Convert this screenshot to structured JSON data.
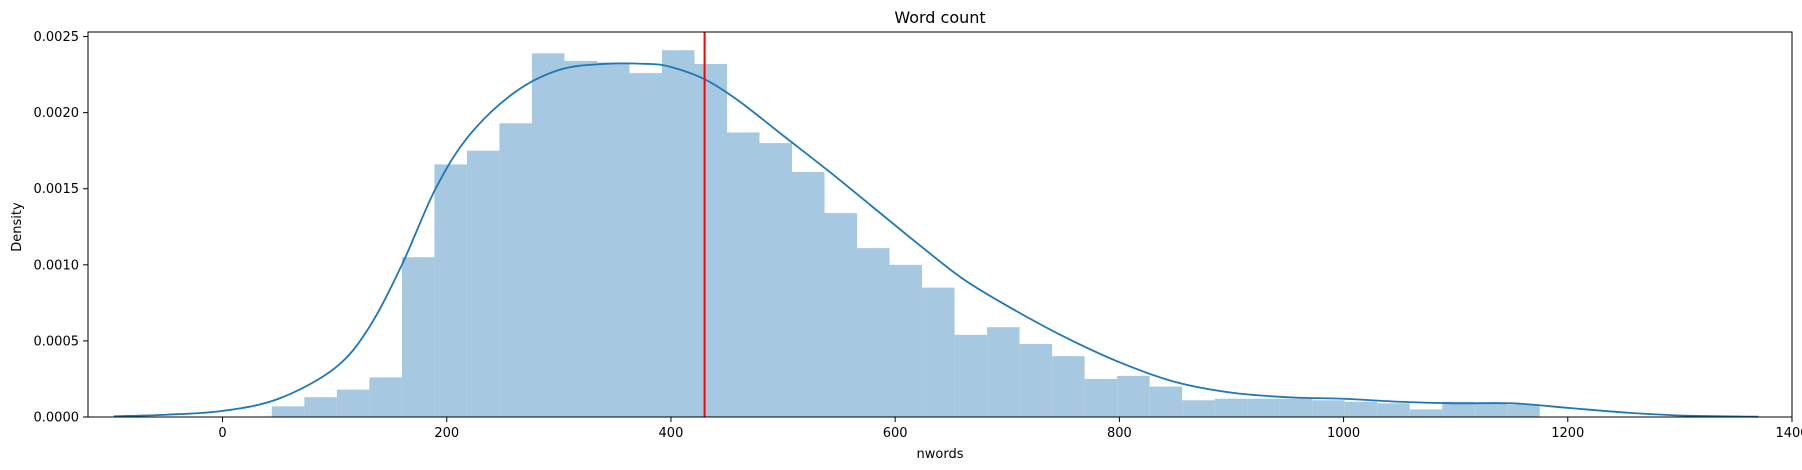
{
  "chart_data": {
    "type": "bar",
    "title": "Word count",
    "xlabel": "nwords",
    "ylabel": "Density",
    "xlim": [
      -120,
      1400
    ],
    "ylim": [
      0,
      0.00253
    ],
    "xticks": [
      0,
      200,
      400,
      600,
      800,
      1000,
      1200,
      1400
    ],
    "xtick_labels": [
      "0",
      "200",
      "400",
      "600",
      "800",
      "1000",
      "1200",
      "1400"
    ],
    "yticks": [
      0,
      0.0005,
      0.001,
      0.0015,
      0.002,
      0.0025
    ],
    "ytick_labels": [
      "0.0000",
      "0.0005",
      "0.0010",
      "0.0015",
      "0.0020",
      "0.0025"
    ],
    "grid": false,
    "histogram": {
      "color": "#a6c8e0",
      "bin_edges": [
        44,
        73,
        102,
        131,
        160,
        189,
        218,
        247,
        276,
        305,
        334,
        363,
        392,
        421,
        450,
        479,
        508,
        537,
        566,
        595,
        624,
        653,
        682,
        711,
        740,
        769,
        798,
        827,
        856,
        885,
        914,
        943,
        972,
        1001,
        1030,
        1059,
        1088,
        1117,
        1146,
        1175
      ],
      "density": [
        7e-05,
        0.00013,
        0.00018,
        0.00026,
        0.00105,
        0.00166,
        0.00175,
        0.00193,
        0.00239,
        0.00234,
        0.00233,
        0.00226,
        0.00241,
        0.00232,
        0.00187,
        0.0018,
        0.00161,
        0.00134,
        0.00111,
        0.001,
        0.00085,
        0.00054,
        0.00059,
        0.00048,
        0.0004,
        0.00025,
        0.00027,
        0.0002,
        0.00011,
        0.00012,
        0.00012,
        0.00012,
        0.00011,
        0.0001,
        9e-05,
        5e-05,
        0.0001,
        9e-05,
        8e-05
      ]
    },
    "kde": {
      "color": "#1f77b4",
      "x": [
        -97,
        -50,
        0,
        50,
        100,
        130,
        160,
        190,
        220,
        260,
        300,
        340,
        380,
        400,
        430,
        460,
        500,
        540,
        580,
        620,
        660,
        700,
        750,
        800,
        850,
        900,
        950,
        1000,
        1050,
        1100,
        1150,
        1200,
        1250,
        1300,
        1370
      ],
      "y": [
        5e-06,
        1.5e-05,
        4e-05,
        0.00012,
        0.00032,
        0.00058,
        0.001,
        0.0015,
        0.00185,
        0.00213,
        0.00228,
        0.00232,
        0.00232,
        0.0023,
        0.00222,
        0.00208,
        0.00185,
        0.00162,
        0.00138,
        0.00114,
        0.00091,
        0.00073,
        0.00053,
        0.00036,
        0.00023,
        0.00016,
        0.00013,
        0.00012,
        0.0001,
        9e-05,
        9e-05,
        6e-05,
        3e-05,
        1e-05,
        2e-06
      ]
    },
    "mean_line": {
      "x": 430,
      "color": "#ff0000"
    }
  }
}
